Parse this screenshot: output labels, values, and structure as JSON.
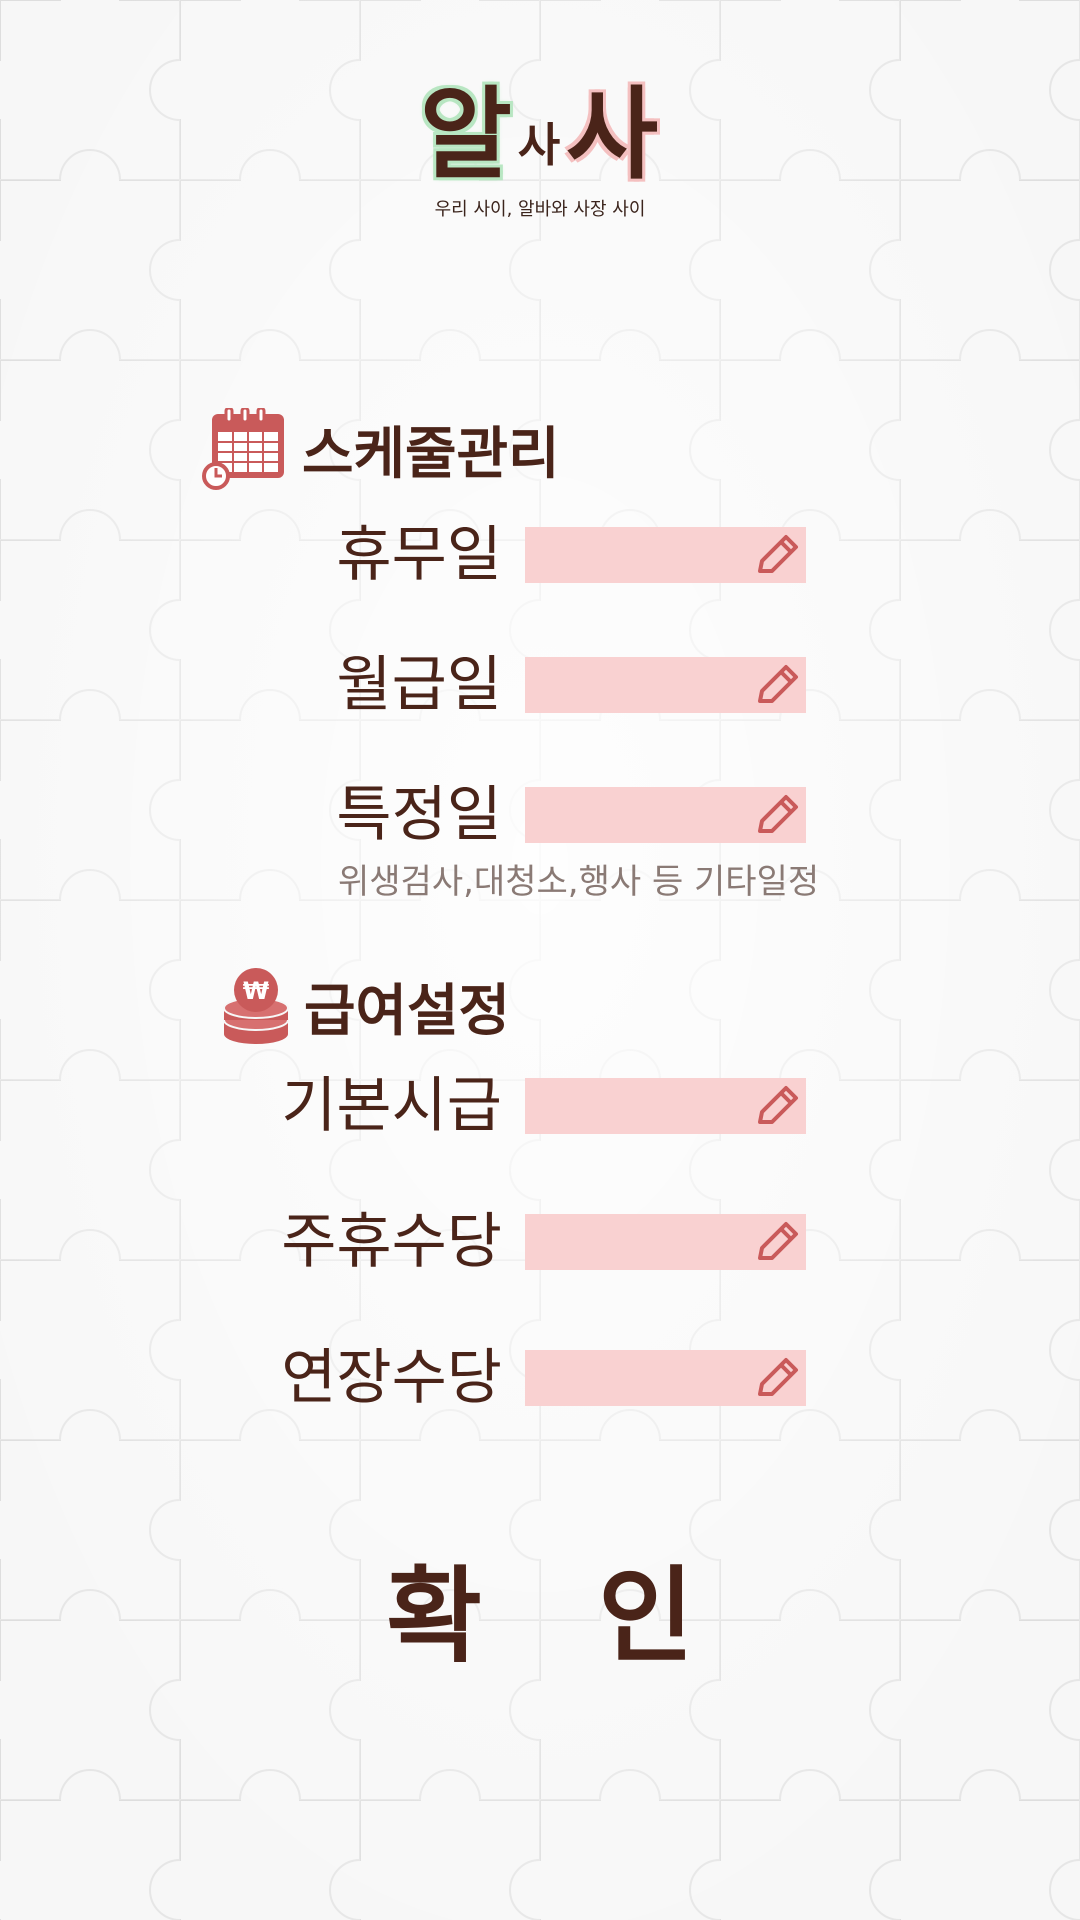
{
  "app": {
    "logo_big1": "알",
    "logo_small": "사",
    "logo_big2": "사",
    "tagline": "우리 사이, 알바와 사장 사이"
  },
  "schedule": {
    "title": "스케줄관리",
    "icon": "calendar-clock-icon",
    "fields": [
      {
        "label": "휴무일",
        "value": ""
      },
      {
        "label": "월급일",
        "value": ""
      },
      {
        "label": "특정일",
        "value": ""
      }
    ],
    "hint": "위생검사,대청소,행사 등 기타일정"
  },
  "salary": {
    "title": "급여설정",
    "icon": "won-coins-icon",
    "fields": [
      {
        "label": "기본시급",
        "value": ""
      },
      {
        "label": "주휴수당",
        "value": ""
      },
      {
        "label": "연장수당",
        "value": ""
      }
    ]
  },
  "confirm_label": "확 인",
  "colors": {
    "text_brown": "#4a2419",
    "field_pink": "#f9d1d1",
    "icon_red": "#c95a5a",
    "hint_gray": "#8a7a75",
    "logo_green": "#b8e6c2",
    "logo_pink": "#f4c0c0"
  }
}
